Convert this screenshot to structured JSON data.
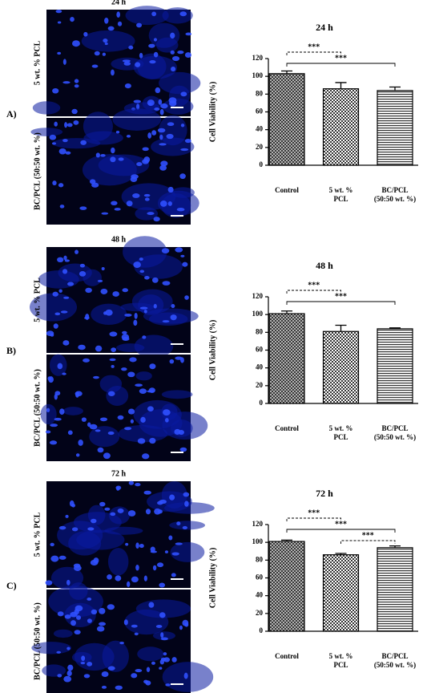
{
  "panels": [
    {
      "label": "A)",
      "time": "24 h",
      "image_labels": [
        "5 wt. % PCL",
        "BC/PCL (50:50 wt. %)"
      ]
    },
    {
      "label": "B)",
      "time": "48 h",
      "image_labels": [
        "5 wt. % PCL",
        "BC/PCL (50:50 wt. %)"
      ]
    },
    {
      "label": "C)",
      "time": "72 h",
      "image_labels": [
        "5 wt. % PCL",
        "BC/PCL (50:50 wt. %)"
      ]
    }
  ],
  "chart_data": [
    {
      "type": "bar",
      "title": "24 h",
      "y_label": "Cell Viability (%)",
      "categories": [
        "Control",
        "5 wt. %\nPCL",
        "BC/PCL\n(50:50 wt. %)"
      ],
      "values": [
        103,
        86,
        84
      ],
      "errors": [
        3,
        7,
        4
      ],
      "patterns": [
        "crosshatch",
        "checker",
        "horizontal"
      ],
      "ylim": [
        0,
        120
      ],
      "yticks": [
        0,
        20,
        40,
        60,
        80,
        100,
        120
      ],
      "comparisons": [
        {
          "groups": [
            0,
            1
          ],
          "label": "***",
          "style": "dashed"
        },
        {
          "groups": [
            0,
            2
          ],
          "label": "***",
          "style": "solid"
        }
      ]
    },
    {
      "type": "bar",
      "title": "48 h",
      "y_label": "Cell Viability (%)",
      "categories": [
        "Control",
        "5 wt. %\nPCL",
        "BC/PCL\n(50:50 wt. %)"
      ],
      "values": [
        101,
        81,
        84
      ],
      "errors": [
        3,
        7,
        1
      ],
      "patterns": [
        "crosshatch",
        "checker",
        "horizontal"
      ],
      "ylim": [
        0,
        120
      ],
      "yticks": [
        0,
        20,
        40,
        60,
        80,
        100,
        120
      ],
      "comparisons": [
        {
          "groups": [
            0,
            1
          ],
          "label": "***",
          "style": "dashed"
        },
        {
          "groups": [
            0,
            2
          ],
          "label": "***",
          "style": "solid"
        }
      ]
    },
    {
      "type": "bar",
      "title": "72 h",
      "y_label": "Cell Viability (%)",
      "categories": [
        "Control",
        "5 wt. %\nPCL",
        "BC/PCL\n(50:50 wt. %)"
      ],
      "values": [
        101,
        86,
        94
      ],
      "errors": [
        1.5,
        1.5,
        2
      ],
      "patterns": [
        "crosshatch",
        "checker",
        "horizontal"
      ],
      "ylim": [
        0,
        120
      ],
      "yticks": [
        0,
        20,
        40,
        60,
        80,
        100,
        120
      ],
      "comparisons": [
        {
          "groups": [
            0,
            1
          ],
          "label": "***",
          "style": "dashed"
        },
        {
          "groups": [
            0,
            2
          ],
          "label": "***",
          "style": "solid"
        },
        {
          "groups": [
            1,
            2
          ],
          "label": "***",
          "style": "dashed"
        }
      ]
    }
  ]
}
